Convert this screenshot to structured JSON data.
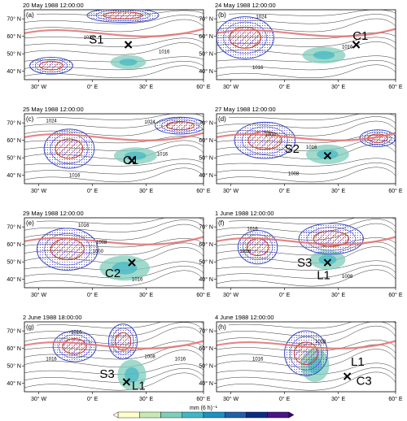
{
  "panels": [
    {
      "letter": "(a)",
      "title": "20 May 1988 12:00:00",
      "labels": [
        {
          "text": "S1"
        }
      ],
      "isobars": [
        "1024",
        "1016"
      ]
    },
    {
      "letter": "(b)",
      "title": "24 May 1988 12:00:00",
      "labels": [
        {
          "text": "C1"
        }
      ],
      "isobars": [
        "1024",
        "1016",
        "1016"
      ]
    },
    {
      "letter": "(c)",
      "title": "25 May 1988 12:00:00",
      "labels": [
        {
          "text": "C1"
        }
      ],
      "isobars": [
        "1024",
        "1016",
        "1024",
        "1016"
      ]
    },
    {
      "letter": "(d)",
      "title": "27 May 1988 12:00:00",
      "labels": [
        {
          "text": "S2"
        }
      ],
      "isobars": [
        "1000",
        "1016",
        "1008"
      ]
    },
    {
      "letter": "(e)",
      "title": "29 May 1988 12:00:00",
      "labels": [
        {
          "text": "C2"
        }
      ],
      "isobars": [
        "1016",
        "1008",
        "1000",
        "1016"
      ]
    },
    {
      "letter": "(f)",
      "title": "1 June 1988 12:00:00",
      "labels": [
        {
          "text": "S3"
        },
        {
          "text": "L1"
        }
      ],
      "isobars": [
        "1016",
        "1016",
        "1008"
      ]
    },
    {
      "letter": "(g)",
      "title": "2 June 1988 18:00:00",
      "labels": [
        {
          "text": "S3"
        },
        {
          "text": "L1"
        }
      ],
      "isobars": [
        "1016",
        "1016",
        "1008",
        "1016"
      ]
    },
    {
      "letter": "(h)",
      "title": "4 June 1988 12:00:00",
      "labels": [
        {
          "text": "L1"
        },
        {
          "text": "C3"
        }
      ],
      "isobars": [
        "1016",
        "1008"
      ]
    }
  ],
  "y_ticks": [
    "70° N",
    "60° N",
    "50° N",
    "40° N"
  ],
  "x_ticks": [
    "30° W",
    "0° E",
    "30° E",
    "60° E"
  ],
  "colorbar": {
    "label": "mm (6 h)⁻¹",
    "ticks": [
      "1",
      "2",
      "3",
      "5",
      "7",
      "10",
      "15",
      "20"
    ],
    "colors": [
      "#ffffcc",
      "#c7e9b4",
      "#7fcdbb",
      "#41b6c4",
      "#1d91c0",
      "#225ea8",
      "#0c2c84",
      "#4a1486"
    ]
  }
}
